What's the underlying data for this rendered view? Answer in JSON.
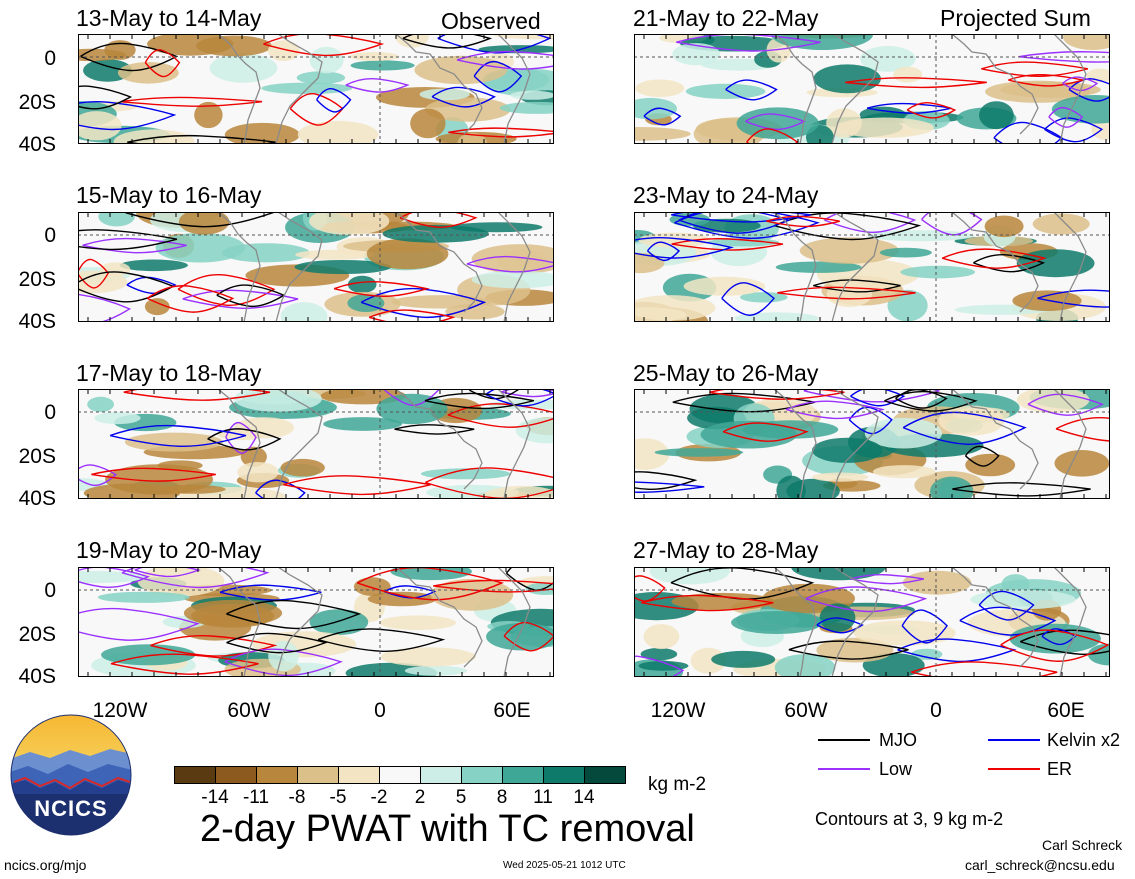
{
  "column_labels": {
    "observed": "Observed",
    "projected": "Projected Sum"
  },
  "panels": [
    {
      "title": "13-May to 14-May",
      "col": "observed"
    },
    {
      "title": "15-May to 16-May",
      "col": "observed"
    },
    {
      "title": "17-May to 18-May",
      "col": "observed"
    },
    {
      "title": "19-May to 20-May",
      "col": "observed"
    },
    {
      "title": "21-May to 22-May",
      "col": "projected"
    },
    {
      "title": "23-May to 24-May",
      "col": "projected"
    },
    {
      "title": "25-May to 26-May",
      "col": "projected"
    },
    {
      "title": "27-May to 28-May",
      "col": "projected"
    }
  ],
  "lat_labels": [
    "0",
    "20S",
    "40S"
  ],
  "lon_labels": [
    "120W",
    "60W",
    "0",
    "60E"
  ],
  "legend": {
    "mjo": {
      "label": "MJO",
      "color": "#000000"
    },
    "kelvin": {
      "label": "Kelvin x2",
      "color": "#0000ee"
    },
    "low": {
      "label": "Low",
      "color": "#9b30ff"
    },
    "er": {
      "label": "ER",
      "color": "#ee0000"
    }
  },
  "contours_note": "Contours at 3, 9 kg m-2",
  "colorbar": {
    "unit": "kg m-2",
    "ticks": [
      "-14",
      "-11",
      "-8",
      "-5",
      "-2",
      "2",
      "5",
      "8",
      "11",
      "14"
    ],
    "colors": [
      "#5a3a10",
      "#8c5a1e",
      "#b8863c",
      "#dcc08a",
      "#f3e5c4",
      "#f8f8f8",
      "#cdeee6",
      "#86d2c4",
      "#3fa796",
      "#0e7a6a",
      "#05483c"
    ]
  },
  "main_title": "2-day PWAT with TC removal",
  "logo_text": "NCICS",
  "footer": {
    "website": "ncics.org/mjo",
    "timestamp": "Wed 2025-05-21 1012 UTC",
    "author": "Carl Schreck",
    "email": "carl_schreck@ncsu.edu"
  }
}
